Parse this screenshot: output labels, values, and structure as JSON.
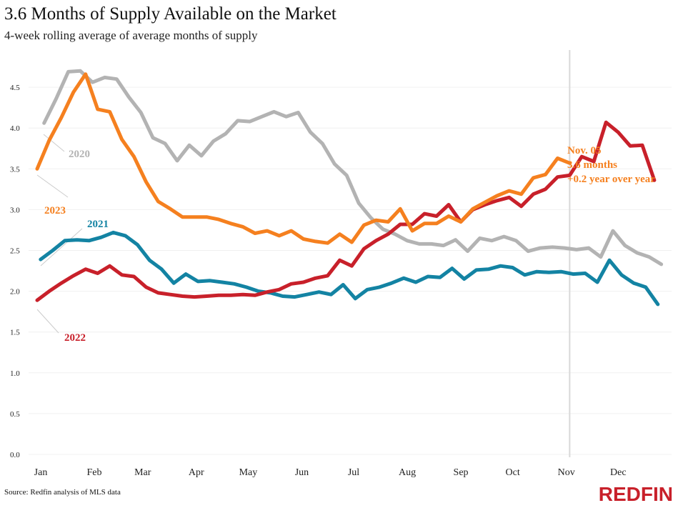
{
  "title": "3.6 Months of Supply Available on the Market",
  "subtitle": "4-week rolling average of average months of supply",
  "source": "Source: Redfin analysis of MLS data",
  "logo": "REDFIN",
  "chart_data": {
    "type": "line",
    "ylim": [
      0,
      4.8
    ],
    "yticks": [
      "0.0",
      "0.5",
      "1.0",
      "1.5",
      "2.0",
      "2.5",
      "3.0",
      "3.5",
      "4.0",
      "4.5"
    ],
    "xticks": [
      "Jan",
      "Feb",
      "Mar",
      "Apr",
      "May",
      "Jun",
      "Jul",
      "Aug",
      "Sep",
      "Oct",
      "Nov",
      "Dec"
    ],
    "grid": true,
    "x_frequency": "weekly",
    "series": [
      {
        "name": "2020",
        "color": "#b3b3b3",
        "start": "Jan 5",
        "values": [
          4.06,
          4.36,
          4.69,
          4.7,
          4.56,
          4.62,
          4.6,
          4.38,
          4.19,
          3.88,
          3.81,
          3.6,
          3.79,
          3.66,
          3.84,
          3.93,
          4.09,
          4.08,
          4.14,
          4.2,
          4.14,
          4.19,
          3.95,
          3.81,
          3.56,
          3.42,
          3.08,
          2.9,
          2.76,
          2.7,
          2.62,
          2.58,
          2.58,
          2.56,
          2.63,
          2.49,
          2.65,
          2.62,
          2.67,
          2.62,
          2.49,
          2.53,
          2.54,
          2.53,
          2.51,
          2.53,
          2.42,
          2.74,
          2.56,
          2.47,
          2.42,
          2.33
        ]
      },
      {
        "name": "2021",
        "color": "#1383a3",
        "start": "Jan 3",
        "values": [
          2.39,
          2.5,
          2.62,
          2.63,
          2.62,
          2.66,
          2.72,
          2.68,
          2.57,
          2.38,
          2.27,
          2.1,
          2.21,
          2.12,
          2.13,
          2.11,
          2.09,
          2.05,
          2.0,
          1.98,
          1.94,
          1.93,
          1.96,
          1.99,
          1.96,
          2.08,
          1.91,
          2.02,
          2.05,
          2.1,
          2.16,
          2.11,
          2.18,
          2.17,
          2.28,
          2.15,
          2.26,
          2.27,
          2.31,
          2.29,
          2.2,
          2.24,
          2.23,
          2.24,
          2.21,
          2.22,
          2.11,
          2.38,
          2.2,
          2.1,
          2.05,
          1.84
        ]
      },
      {
        "name": "2022",
        "color": "#c8202a",
        "start": "Jan 1",
        "values": [
          1.89,
          2.0,
          2.1,
          2.19,
          2.27,
          2.22,
          2.31,
          2.2,
          2.18,
          2.05,
          1.98,
          1.96,
          1.94,
          1.93,
          1.94,
          1.95,
          1.95,
          1.96,
          1.95,
          1.99,
          2.02,
          2.09,
          2.11,
          2.16,
          2.19,
          2.38,
          2.31,
          2.52,
          2.62,
          2.7,
          2.82,
          2.82,
          2.95,
          2.92,
          3.06,
          2.85,
          3.0,
          3.06,
          3.11,
          3.15,
          3.04,
          3.19,
          3.25,
          3.4,
          3.42,
          3.65,
          3.59,
          4.07,
          3.95,
          3.78,
          3.79,
          3.36
        ]
      },
      {
        "name": "2023",
        "color": "#f5801f",
        "start": "Jan 1",
        "values": [
          3.5,
          3.85,
          4.13,
          4.44,
          4.66,
          4.23,
          4.2,
          3.86,
          3.65,
          3.34,
          3.1,
          3.01,
          2.91,
          2.91,
          2.91,
          2.88,
          2.83,
          2.79,
          2.71,
          2.74,
          2.68,
          2.74,
          2.64,
          2.61,
          2.59,
          2.7,
          2.6,
          2.81,
          2.87,
          2.85,
          3.01,
          2.74,
          2.83,
          2.83,
          2.92,
          2.85,
          3.01,
          3.09,
          3.17,
          3.23,
          3.19,
          3.39,
          3.43,
          3.63,
          3.57
        ]
      }
    ],
    "reference_line": "Nov 5",
    "annotation": [
      "Nov. 05",
      "3.6 months",
      "+0.2 year over year"
    ],
    "annotation_color": "#f5801f"
  }
}
